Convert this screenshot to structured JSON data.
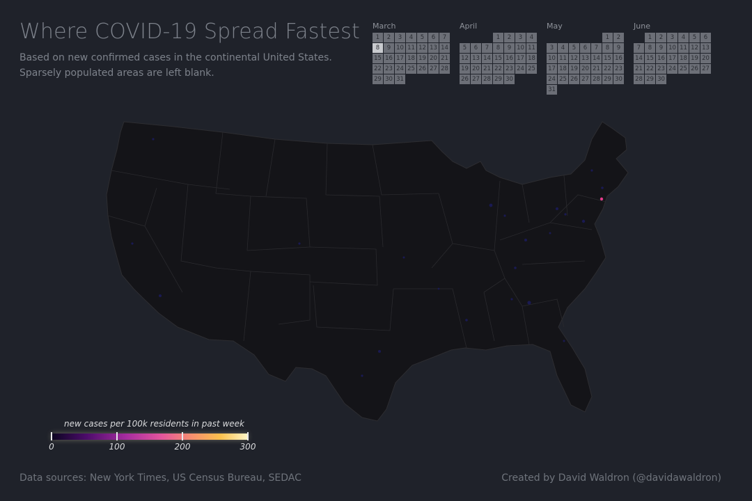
{
  "header": {
    "title": "Where COVID-19 Spread Fastest",
    "subtitle_line1": "Based on new confirmed cases in the continental United States.",
    "subtitle_line2": "Sparsely populated areas are left blank."
  },
  "calendar": {
    "selected": {
      "month": "March",
      "day": 8
    },
    "months": [
      {
        "name": "March",
        "start_offset": 0,
        "days": 31
      },
      {
        "name": "April",
        "start_offset": 3,
        "days": 30
      },
      {
        "name": "May",
        "start_offset": 5,
        "days": 31
      },
      {
        "name": "June",
        "start_offset": 1,
        "days": 30
      }
    ]
  },
  "legend": {
    "title": "new cases per 100k residents in past week",
    "min": 0,
    "max": 300,
    "ticks": [
      0,
      100,
      200,
      300
    ],
    "colors": [
      "#0b0520",
      "#4d0c6b",
      "#a52c9f",
      "#e4559c",
      "#f7916d",
      "#fbc14d",
      "#fff6c8"
    ]
  },
  "map": {
    "region": "continental United States",
    "base_color": "#141418",
    "border_color": "#2d2d31",
    "hotspot_color": "#e43c8c",
    "dot_color": "#1a1a52"
  },
  "footer": {
    "sources": "Data sources: New York Times, US Census Bureau, SEDAC",
    "credit": "Created by David Waldron (@davidawaldron)"
  }
}
